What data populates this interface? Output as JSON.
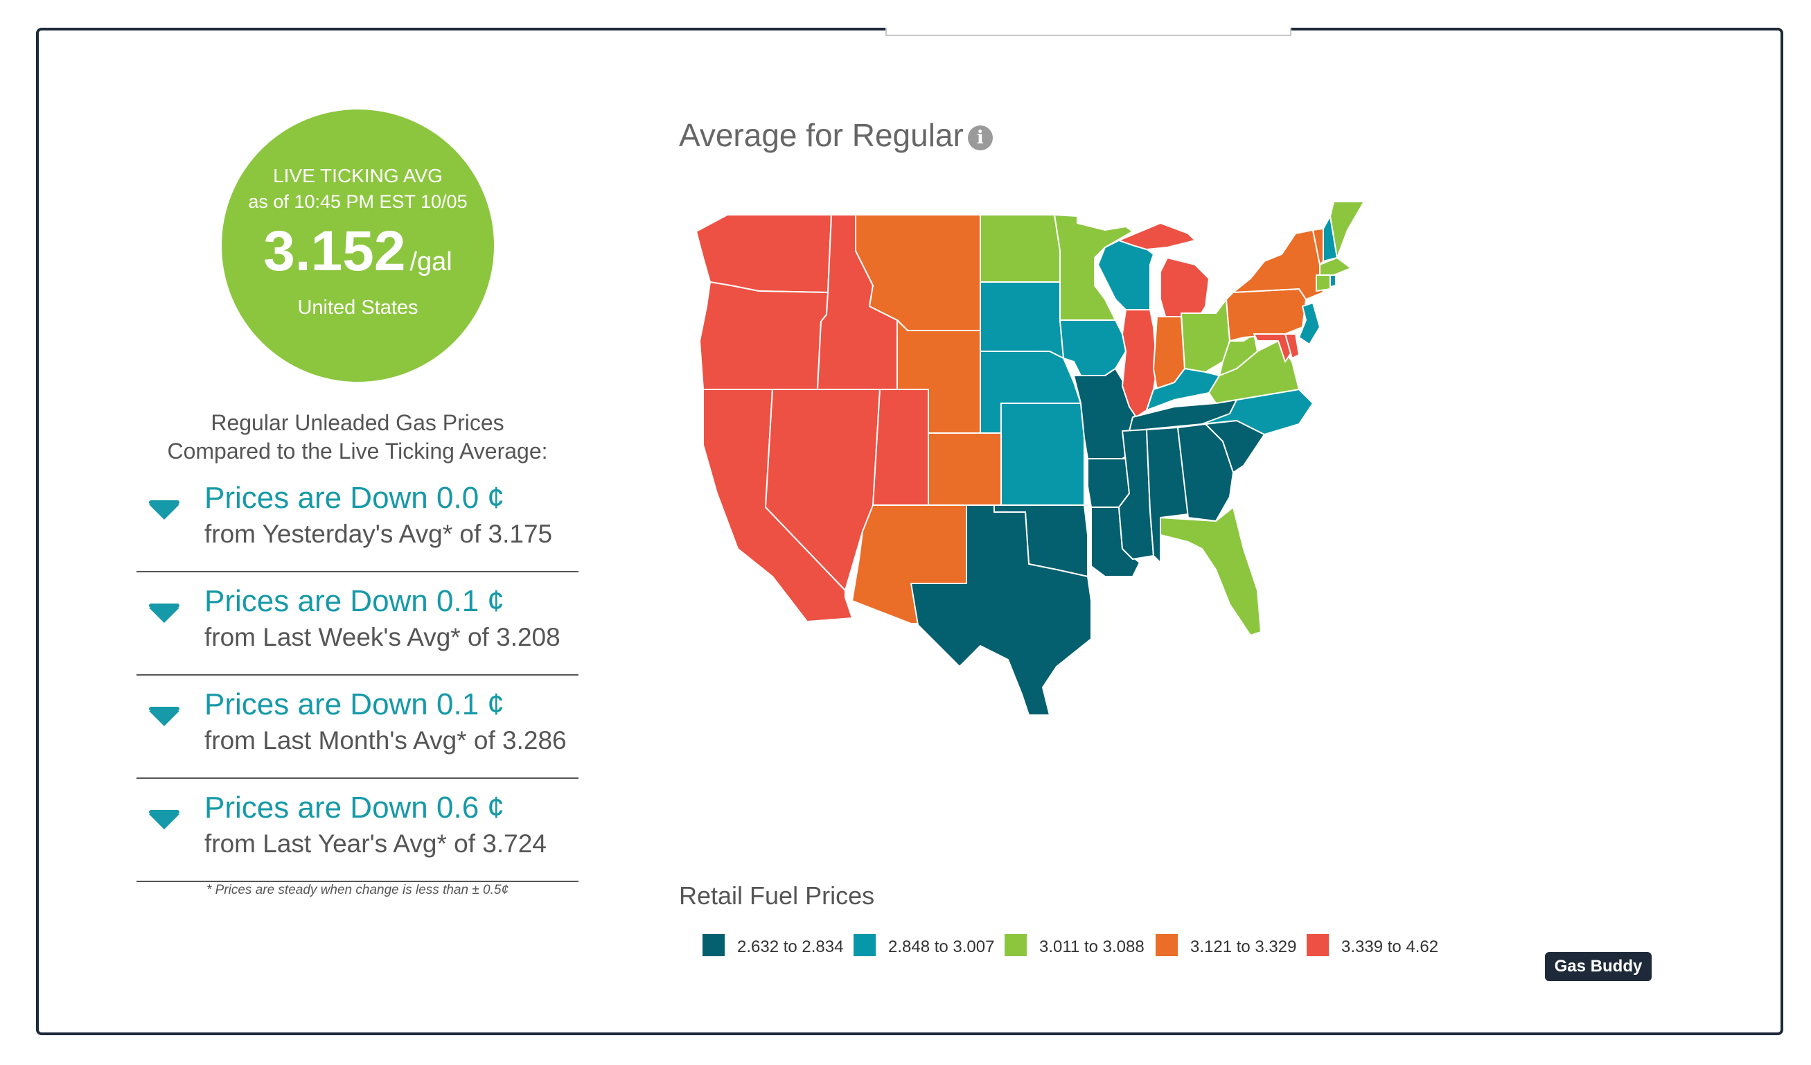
{
  "live": {
    "line1": "LIVE TICKING AVG",
    "line2": "as of 10:45 PM EST 10/05",
    "price": "3.152",
    "unit": "/gal",
    "region": "United States",
    "color": "#8cc63f"
  },
  "comparison": {
    "title1": "Regular Unleaded Gas Prices",
    "title2": "Compared to the Live Ticking Average:",
    "rows": [
      {
        "change": "Prices are Down 0.0 ¢",
        "detail": "from Yesterday's Avg* of 3.175",
        "icon": "down-arrow-icon"
      },
      {
        "change": "Prices are Down 0.1 ¢",
        "detail": "from Last Week's Avg* of 3.208",
        "icon": "down-arrow-icon"
      },
      {
        "change": "Prices are Down 0.1 ¢",
        "detail": "from Last Month's Avg* of 3.286",
        "icon": "down-arrow-icon"
      },
      {
        "change": "Prices are Down 0.6 ¢",
        "detail": "from Last Year's Avg* of 3.724",
        "icon": "down-arrow-icon"
      }
    ],
    "note": "* Prices are steady when change is less than ± 0.5¢"
  },
  "map": {
    "title": "Average for Regular",
    "info_icon": "info-icon"
  },
  "legend": {
    "title": "Retail Fuel Prices",
    "ranges": [
      {
        "label": "2.632 to 2.834",
        "color": "#045f6e"
      },
      {
        "label": "2.848 to 3.007",
        "color": "#0897a8"
      },
      {
        "label": "3.011 to 3.088",
        "color": "#8cc63f"
      },
      {
        "label": "3.121 to 3.329",
        "color": "#ea6d28"
      },
      {
        "label": "3.339 to 4.62",
        "color": "#ec5143"
      }
    ]
  },
  "badge": {
    "label": "Gas Buddy"
  }
}
